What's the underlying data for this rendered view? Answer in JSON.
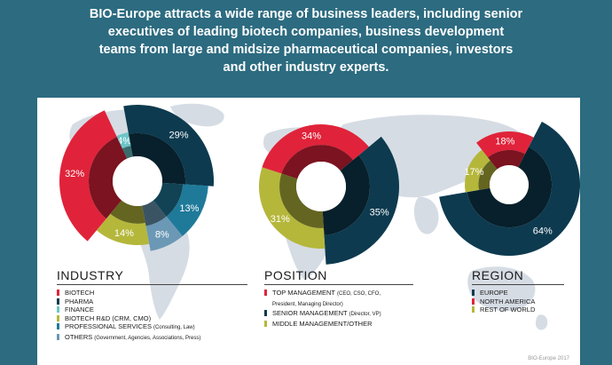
{
  "headline": [
    "BIO-Europe attracts a wide range of business leaders, including senior",
    "executives of leading biotech companies, business development",
    "teams from large and midsize pharmaceutical companies, investors",
    "and other industry experts."
  ],
  "credit": "BIO-Europe 2017",
  "colors": {
    "red": "#e0233a",
    "navy": "#0d3a4f",
    "teal_light": "#6cc5c7",
    "olive": "#b5b73b",
    "blue": "#1f7a9a",
    "steel": "#6b98b5"
  },
  "chart_data": [
    {
      "type": "pie",
      "title": "INDUSTRY",
      "slices": [
        {
          "label": "BIOTECH",
          "value": 32,
          "label_text": "32%",
          "color": "#e0233a"
        },
        {
          "label": "PHARMA",
          "value": 29,
          "label_text": "29%",
          "color": "#0d3a4f"
        },
        {
          "label": "FINANCE",
          "value": 4,
          "label_text": "4%",
          "color": "#6cc5c7"
        },
        {
          "label": "BIOTECH R&D (CRM, CMO)",
          "value": 14,
          "label_text": "14%",
          "color": "#b5b73b"
        },
        {
          "label": "PROFESSIONAL SERVICES",
          "label_note": "(Consulting, Law)",
          "value": 13,
          "label_text": "13%",
          "color": "#1f7a9a"
        },
        {
          "label": "OTHERS",
          "label_note": "(Government, Agencies, Associations, Press)",
          "value": 8,
          "label_text": "8%",
          "color": "#6b98b5"
        }
      ],
      "legend": [
        {
          "label": "BIOTECH",
          "note": "",
          "color": "#e0233a"
        },
        {
          "label": "PHARMA",
          "note": "",
          "color": "#0d3a4f"
        },
        {
          "label": "FINANCE",
          "note": "",
          "color": "#6cc5c7"
        },
        {
          "label": "BIOTECH R&D (CRM, CMO)",
          "note": "",
          "color": "#b5b73b"
        },
        {
          "label": "PROFESSIONAL SERVICES",
          "note": "(Consulting, Law)",
          "color": "#1f7a9a"
        },
        {
          "label": "OTHERS",
          "note": "(Government, Agencies, Associations, Press)",
          "color": "#6b98b5"
        }
      ]
    },
    {
      "type": "pie",
      "title": "POSITION",
      "slices": [
        {
          "label": "TOP MANAGEMENT",
          "value": 34,
          "label_text": "34%",
          "color": "#e0233a"
        },
        {
          "label": "SENIOR MANAGEMENT",
          "value": 35,
          "label_text": "35%",
          "color": "#0d3a4f"
        },
        {
          "label": "MIDDLE MANAGEMENT/OTHER",
          "value": 31,
          "label_text": "31%",
          "color": "#b5b73b"
        }
      ],
      "legend": [
        {
          "label": "TOP MANAGEMENT",
          "note": "(CEO, CSO, CFO,",
          "note2": "President, Managing Director)",
          "color": "#e0233a"
        },
        {
          "label": "SENIOR MANAGEMENT",
          "note": "(Director, VP)",
          "color": "#0d3a4f"
        },
        {
          "label": "MIDDLE MANAGEMENT/OTHER",
          "note": "",
          "color": "#b5b73b"
        }
      ]
    },
    {
      "type": "pie",
      "title": "REGION",
      "slices": [
        {
          "label": "NORTH AMERICA",
          "value": 18,
          "label_text": "18%",
          "color": "#e0233a"
        },
        {
          "label": "EUROPE",
          "value": 64,
          "label_text": "64%",
          "color": "#0d3a4f"
        },
        {
          "label": "REST OF WORLD",
          "value": 17,
          "label_text": "17%",
          "color": "#b5b73b"
        }
      ],
      "legend": [
        {
          "label": "EUROPE",
          "note": "",
          "color": "#0d3a4f"
        },
        {
          "label": "NORTH AMERICA",
          "note": "",
          "color": "#e0233a"
        },
        {
          "label": "REST OF WORLD",
          "note": "",
          "color": "#b5b73b"
        }
      ]
    }
  ]
}
